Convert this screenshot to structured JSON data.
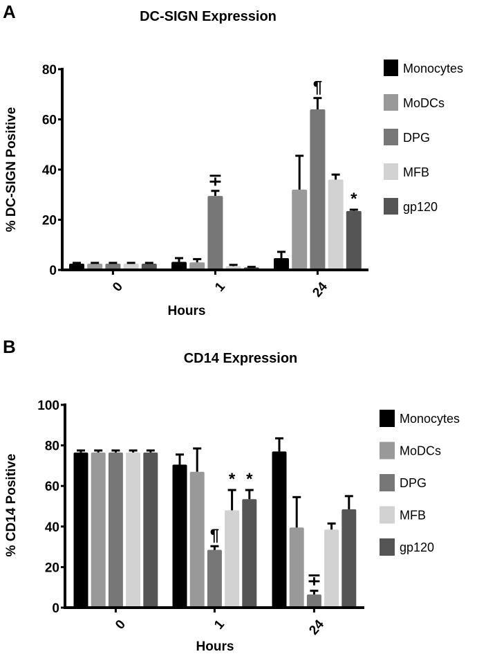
{
  "chart_data": [
    {
      "type": "bar",
      "panel": "A",
      "title": "DC-SIGN Expression",
      "xlabel": "Hours",
      "ylabel": "% DC-SIGN Positive",
      "ylim": [
        0,
        80
      ],
      "yticks": [
        0,
        20,
        40,
        60,
        80
      ],
      "categories": [
        "0",
        "1",
        "24"
      ],
      "series": [
        {
          "name": "Monocytes",
          "color": "#000000",
          "values": [
            2.5,
            3.2,
            4.7
          ],
          "errors": [
            0.3,
            1.5,
            2.5
          ]
        },
        {
          "name": "MoDCs",
          "color": "#999999",
          "values": [
            2.5,
            3.0,
            32
          ],
          "errors": [
            0.3,
            1.3,
            13.5
          ]
        },
        {
          "name": "DPG",
          "color": "#777777",
          "values": [
            2.5,
            29.5,
            64
          ],
          "errors": [
            0.3,
            2.0,
            4.5
          ]
        },
        {
          "name": "MFB",
          "color": "#d2d2d2",
          "values": [
            2.5,
            1.5,
            36
          ],
          "errors": [
            0.3,
            0.5,
            2.0
          ]
        },
        {
          "name": "gp120",
          "color": "#555555",
          "values": [
            2.5,
            1.0,
            23.5
          ],
          "errors": [
            0.3,
            0.2,
            0.5
          ]
        }
      ],
      "annotations": [
        {
          "category": "1",
          "series": "DPG",
          "text": "∓"
        },
        {
          "category": "24",
          "series": "DPG",
          "text": "¶"
        },
        {
          "category": "24",
          "series": "gp120",
          "text": "*"
        }
      ],
      "legend": "right"
    },
    {
      "type": "bar",
      "panel": "B",
      "title": "CD14 Expression",
      "xlabel": "Hours",
      "ylabel": "% CD14 Positive",
      "ylim": [
        0,
        100
      ],
      "yticks": [
        0,
        20,
        40,
        60,
        80,
        100
      ],
      "categories": [
        "0",
        "1",
        "24"
      ],
      "series": [
        {
          "name": "Monocytes",
          "color": "#000000",
          "values": [
            76.5,
            70.5,
            77
          ],
          "errors": [
            1.0,
            5.0,
            6.5
          ]
        },
        {
          "name": "MoDCs",
          "color": "#999999",
          "values": [
            76.5,
            67,
            39.5
          ],
          "errors": [
            1.0,
            11.5,
            15
          ]
        },
        {
          "name": "DPG",
          "color": "#777777",
          "values": [
            76.5,
            28.5,
            6.5
          ],
          "errors": [
            1.0,
            1.8,
            1.8
          ]
        },
        {
          "name": "MFB",
          "color": "#d2d2d2",
          "values": [
            76.5,
            48,
            38.5
          ],
          "errors": [
            1.0,
            10,
            3.0
          ]
        },
        {
          "name": "gp120",
          "color": "#555555",
          "values": [
            76.5,
            53.5,
            48.5
          ],
          "errors": [
            1.0,
            4.5,
            6.5
          ]
        }
      ],
      "annotations": [
        {
          "category": "1",
          "series": "DPG",
          "text": "¶"
        },
        {
          "category": "1",
          "series": "MFB",
          "text": "*"
        },
        {
          "category": "1",
          "series": "gp120",
          "text": "*"
        },
        {
          "category": "24",
          "series": "DPG",
          "text": "∓"
        }
      ],
      "legend": "right"
    }
  ]
}
